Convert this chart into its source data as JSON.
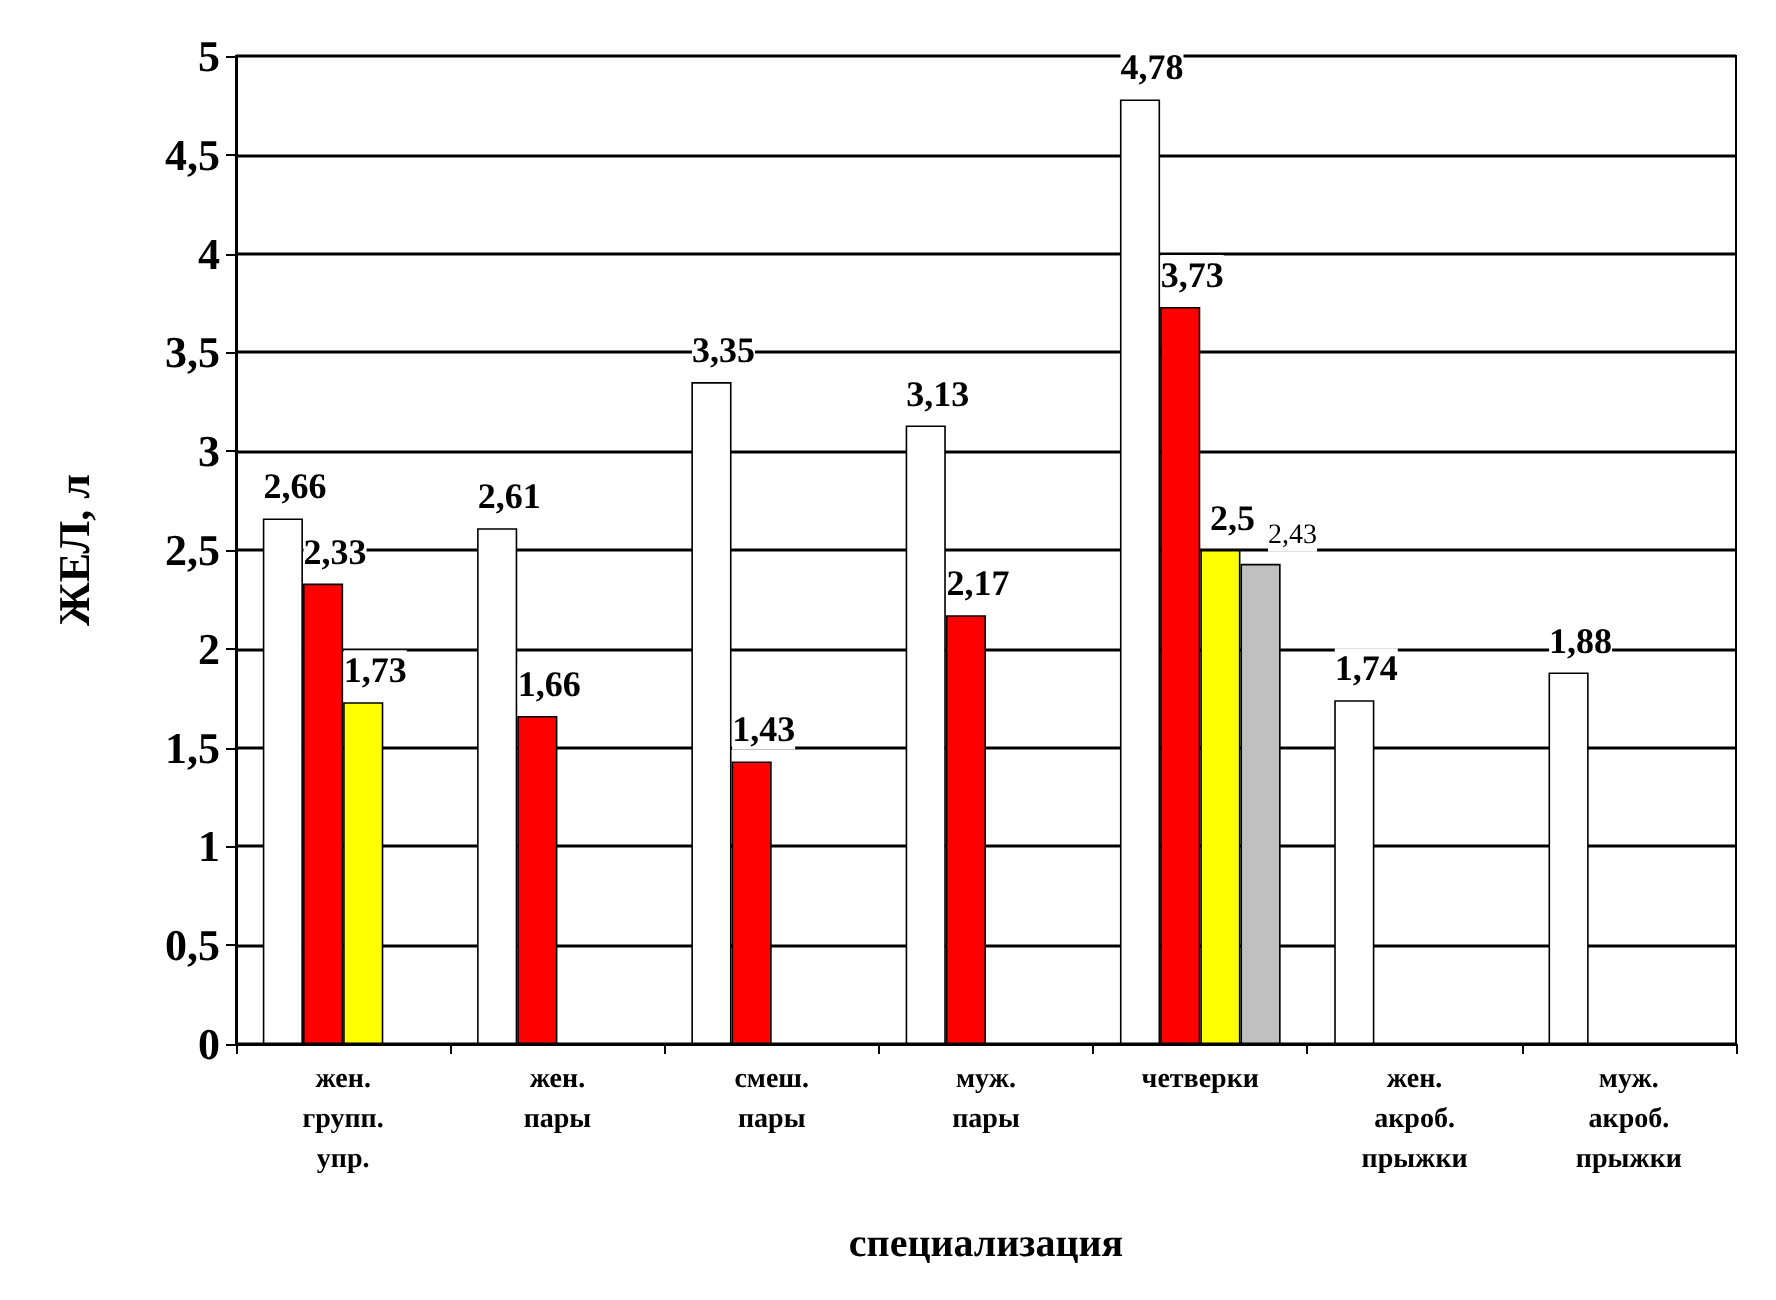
{
  "chart_data": {
    "type": "bar",
    "ylabel": "ЖЕЛ, л",
    "xlabel": "специализация",
    "categories": [
      "жен.\nгрупп.\nупр.",
      "жен.\nпары",
      "смеш.\nпары",
      "муж.\nпары",
      "четверки",
      "жен.\nакроб.\nпрыжки",
      "муж.\nакроб.\nпрыжки"
    ],
    "series": [
      {
        "color": "#ffffff",
        "values": [
          2.66,
          2.61,
          3.35,
          3.13,
          4.78,
          1.74,
          1.88
        ],
        "value_labels": [
          "2,66",
          "2,61",
          "3,35",
          "3,13",
          "4,78",
          "1,74",
          "1,88"
        ]
      },
      {
        "color": "#ff0000",
        "values": [
          2.33,
          1.66,
          1.43,
          2.17,
          3.73,
          0,
          0
        ],
        "value_labels": [
          "2,33",
          "1,66",
          "1,43",
          "2,17",
          "3,73",
          null,
          null
        ]
      },
      {
        "color": "#ffff00",
        "values": [
          1.73,
          0,
          0,
          0,
          2.5,
          0,
          0
        ],
        "value_labels": [
          "1,73",
          null,
          null,
          null,
          "2,5",
          null,
          null
        ]
      },
      {
        "color": "#c0c0c0",
        "values": [
          0,
          0,
          0,
          0,
          2.43,
          0,
          0
        ],
        "value_labels": [
          null,
          null,
          null,
          null,
          "2,43",
          null,
          null
        ]
      }
    ],
    "ylim": [
      0,
      5
    ],
    "yticks": [
      0,
      {
        "value": 0.5,
        "label": "0,5"
      },
      1,
      {
        "value": 1.5,
        "label": "1,5"
      },
      2,
      {
        "value": 2.5,
        "label": "2,5"
      },
      3,
      {
        "value": 3.5,
        "label": "3,5"
      },
      4,
      {
        "value": 4.5,
        "label": "4,5"
      },
      5
    ],
    "grid": "y"
  }
}
